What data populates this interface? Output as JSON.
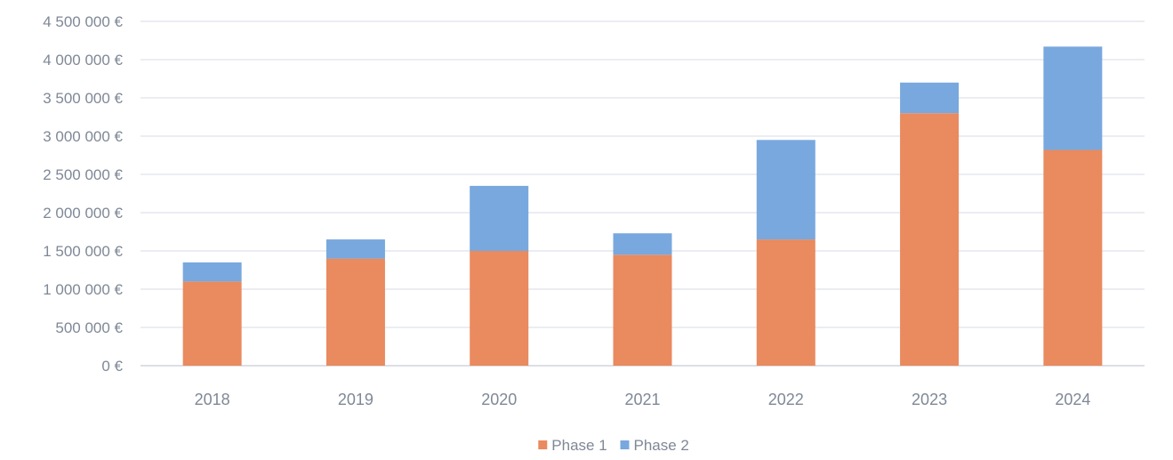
{
  "chart_data": {
    "type": "bar",
    "stacked": true,
    "categories": [
      "2018",
      "2019",
      "2020",
      "2021",
      "2022",
      "2023",
      "2024"
    ],
    "series": [
      {
        "name": "Phase 1",
        "color": "#e98a5f",
        "values": [
          1100000,
          1400000,
          1500000,
          1450000,
          1650000,
          3300000,
          2820000
        ]
      },
      {
        "name": "Phase 2",
        "color": "#78a8de",
        "values": [
          250000,
          250000,
          850000,
          280000,
          1300000,
          400000,
          1350000
        ]
      }
    ],
    "title": "",
    "xlabel": "",
    "ylabel": "",
    "ylim": [
      0,
      4500000
    ],
    "y_ticks": [
      0,
      500000,
      1000000,
      1500000,
      2000000,
      2500000,
      3000000,
      3500000,
      4000000,
      4500000
    ],
    "y_tick_labels": [
      "0 €",
      "500 000 €",
      "1 000 000 €",
      "1 500 000 €",
      "2 000 000 €",
      "2 500 000 €",
      "3 000 000 €",
      "3 500 000 €",
      "4 000 000 €",
      "4 500 000 €"
    ],
    "grid": true,
    "legend": "bottom-center"
  }
}
